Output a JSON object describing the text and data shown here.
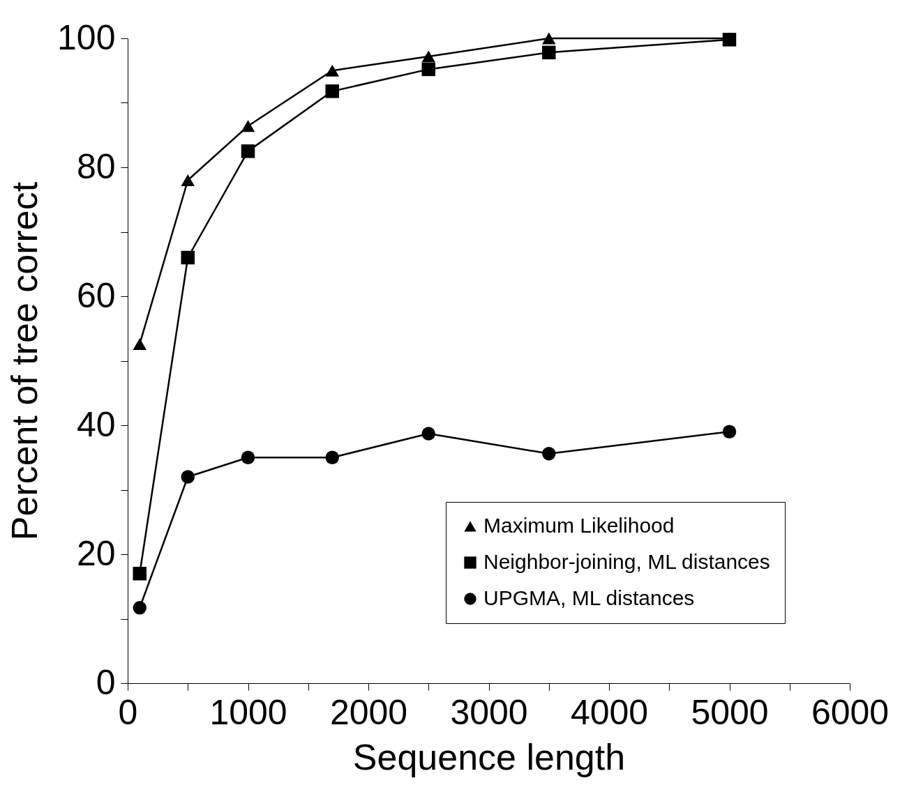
{
  "chart_data": {
    "type": "line",
    "xlabel": "Sequence length",
    "ylabel": "Percent of tree correct",
    "x": [
      100,
      500,
      1000,
      1700,
      2500,
      3500,
      5000
    ],
    "series": [
      {
        "name": "Maximum Likelihood",
        "color": "#000000",
        "marker": "triangle",
        "values": [
          52.6,
          78,
          86.4,
          95,
          97.2,
          100,
          100
        ]
      },
      {
        "name": "Neighbor-joining, ML distances",
        "color": "#000000",
        "marker": "square",
        "values": [
          17,
          66,
          82.5,
          91.8,
          95.2,
          97.8,
          99.8
        ]
      },
      {
        "name": "UPGMA, ML distances",
        "color": "#000000",
        "marker": "circle",
        "values": [
          11.7,
          32,
          35,
          35,
          38.7,
          35.6,
          39
        ]
      }
    ],
    "xlim": [
      0,
      6000
    ],
    "xticks": [
      0,
      {
        "value": 500,
        "label": null
      },
      1000,
      {
        "value": 1500,
        "label": null
      },
      2000,
      {
        "value": 2500,
        "label": null
      },
      3000,
      {
        "value": 3500,
        "label": null
      },
      4000,
      {
        "value": 4500,
        "label": null
      },
      5000,
      {
        "value": 5500,
        "label": null
      },
      6000
    ],
    "ylim": [
      0,
      100
    ],
    "yticks": [
      0,
      {
        "value": 10,
        "label": null
      },
      20,
      {
        "value": 30,
        "label": null
      },
      40,
      {
        "value": 50,
        "label": null
      },
      60,
      {
        "value": 70,
        "label": null
      },
      80,
      {
        "value": 90,
        "label": null
      },
      100
    ],
    "grid": false,
    "legend": "bottom right"
  }
}
